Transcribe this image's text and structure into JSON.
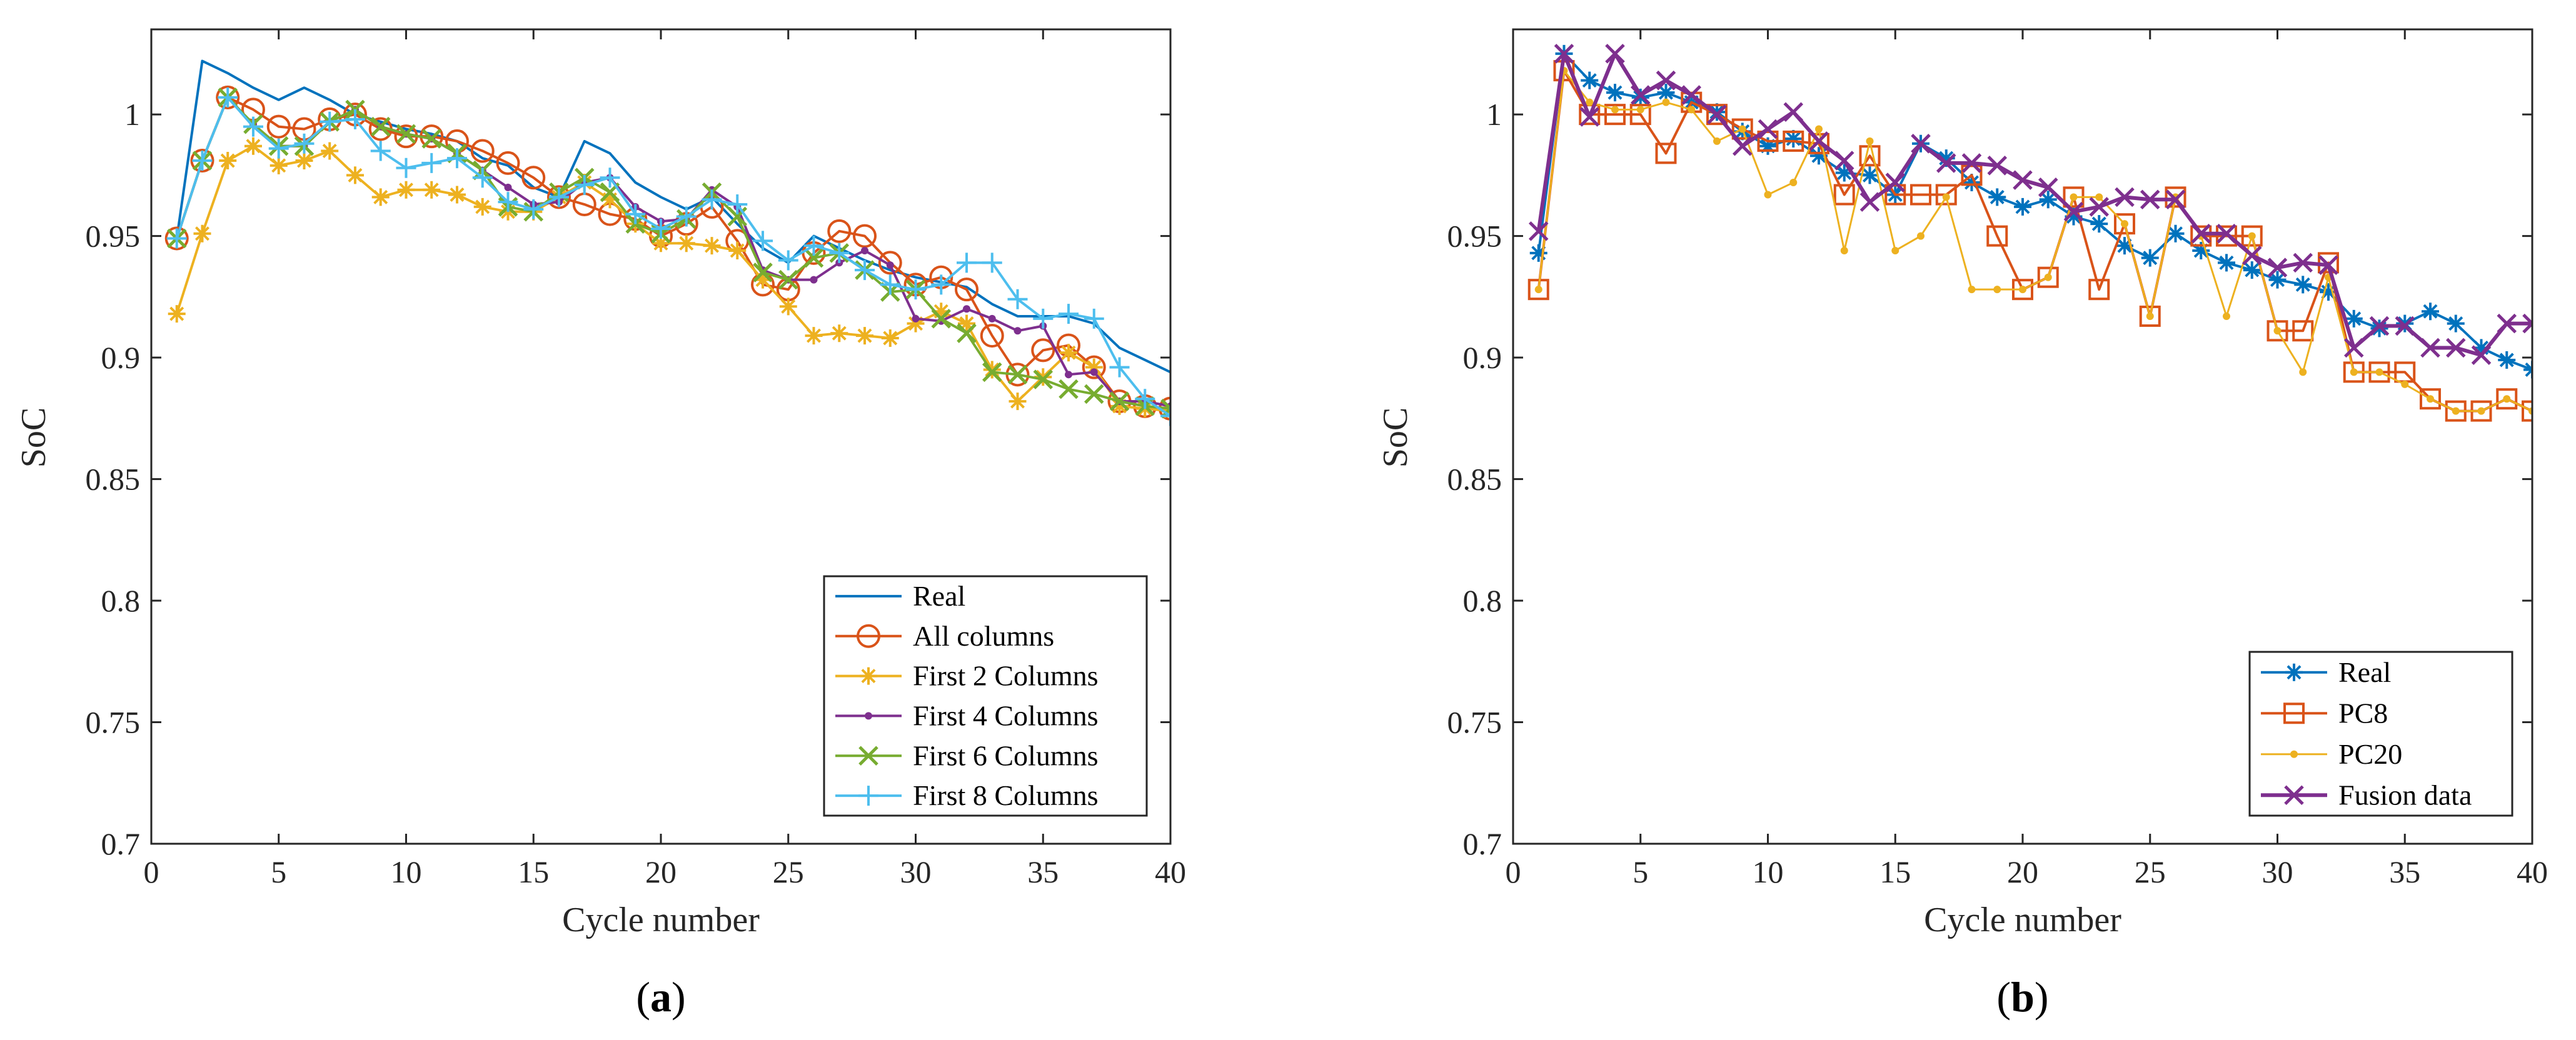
{
  "colors": {
    "blue": "#0072BD",
    "orange": "#D95319",
    "yellow": "#EDB120",
    "purple": "#7E2F8E",
    "green": "#77AC30",
    "cyan": "#4DBEEE"
  },
  "chart_data": [
    {
      "type": "line",
      "caption": "(a)",
      "caption_letter": "a",
      "xlabel": "Cycle number",
      "ylabel": "SoC",
      "xlim": [
        0,
        40
      ],
      "ylim": [
        0.7,
        1.035
      ],
      "xticks": [
        0,
        5,
        10,
        15,
        20,
        25,
        30,
        35,
        40
      ],
      "xtick_labels": [
        "0",
        "5",
        "10",
        "15",
        "20",
        "25",
        "30",
        "35",
        "40"
      ],
      "yticks": [
        0.7,
        0.75,
        0.8,
        0.85,
        0.9,
        0.95,
        1
      ],
      "ytick_labels": [
        "0.7",
        "0.75",
        "0.8",
        "0.85",
        "0.9",
        "0.95",
        "1"
      ],
      "legend_position": "bottom-right",
      "series": [
        {
          "name": "Real",
          "color": "blue",
          "marker": "none",
          "width": 4,
          "values": [
            0.949,
            1.022,
            1.017,
            1.011,
            1.006,
            1.011,
            1.006,
            1.0,
            0.997,
            0.994,
            0.992,
            0.989,
            0.982,
            0.979,
            0.97,
            0.966,
            0.989,
            0.984,
            0.972,
            0.966,
            0.961,
            0.966,
            0.955,
            0.945,
            0.939,
            0.95,
            0.945,
            0.94,
            0.936,
            0.933,
            0.931,
            0.929,
            0.922,
            0.917,
            0.917,
            0.917,
            0.914,
            0.904,
            0.899,
            0.894
          ]
        },
        {
          "name": "All columns",
          "color": "orange",
          "marker": "circle",
          "width": 4,
          "values": [
            0.949,
            0.981,
            1.007,
            1.002,
            0.995,
            0.994,
            0.998,
            1.0,
            0.994,
            0.991,
            0.991,
            0.989,
            0.985,
            0.98,
            0.974,
            0.966,
            0.963,
            0.959,
            0.957,
            0.95,
            0.955,
            0.962,
            0.948,
            0.93,
            0.928,
            0.943,
            0.952,
            0.95,
            0.939,
            0.93,
            0.933,
            0.928,
            0.909,
            0.893,
            0.903,
            0.905,
            0.896,
            0.882,
            0.88,
            0.879
          ]
        },
        {
          "name": "First 2 Columns",
          "color": "yellow",
          "marker": "star",
          "width": 4,
          "values": [
            0.918,
            0.951,
            0.981,
            0.987,
            0.979,
            0.981,
            0.985,
            0.975,
            0.966,
            0.969,
            0.969,
            0.967,
            0.962,
            0.96,
            0.96,
            0.966,
            0.972,
            0.965,
            0.955,
            0.947,
            0.947,
            0.946,
            0.944,
            0.932,
            0.921,
            0.909,
            0.91,
            0.909,
            0.908,
            0.914,
            0.919,
            0.914,
            0.895,
            0.882,
            0.892,
            0.902,
            0.896,
            0.88,
            0.879,
            0.878
          ]
        },
        {
          "name": "First 4 Columns",
          "color": "purple",
          "marker": "dot",
          "width": 4,
          "values": [
            0.949,
            0.981,
            1.007,
            0.996,
            0.987,
            0.987,
            0.997,
            1.002,
            0.995,
            0.992,
            0.99,
            0.984,
            0.977,
            0.97,
            0.963,
            0.964,
            0.972,
            0.974,
            0.962,
            0.956,
            0.957,
            0.969,
            0.962,
            0.936,
            0.932,
            0.932,
            0.939,
            0.944,
            0.938,
            0.916,
            0.915,
            0.92,
            0.916,
            0.911,
            0.913,
            0.893,
            0.894,
            0.882,
            0.882,
            0.88
          ]
        },
        {
          "name": "First 6 Columns",
          "color": "green",
          "marker": "x",
          "width": 4,
          "values": [
            0.949,
            0.981,
            1.007,
            0.996,
            0.987,
            0.987,
            0.997,
            1.002,
            0.995,
            0.992,
            0.99,
            0.984,
            0.977,
            0.962,
            0.96,
            0.968,
            0.974,
            0.968,
            0.955,
            0.951,
            0.957,
            0.968,
            0.958,
            0.935,
            0.932,
            0.941,
            0.943,
            0.936,
            0.927,
            0.928,
            0.916,
            0.91,
            0.894,
            0.893,
            0.891,
            0.887,
            0.885,
            0.882,
            0.88,
            0.879
          ]
        },
        {
          "name": "First 8 Columns",
          "color": "cyan",
          "marker": "plus",
          "width": 4,
          "values": [
            0.949,
            0.981,
            1.007,
            0.995,
            0.986,
            0.988,
            0.997,
            0.998,
            0.985,
            0.978,
            0.98,
            0.982,
            0.974,
            0.964,
            0.961,
            0.966,
            0.971,
            0.974,
            0.959,
            0.953,
            0.958,
            0.965,
            0.963,
            0.948,
            0.94,
            0.946,
            0.943,
            0.936,
            0.93,
            0.928,
            0.93,
            0.939,
            0.939,
            0.924,
            0.916,
            0.918,
            0.916,
            0.896,
            0.883,
            0.876
          ]
        }
      ]
    },
    {
      "type": "line",
      "caption": "(b)",
      "caption_letter": "b",
      "xlabel": "Cycle number",
      "ylabel": "SoC",
      "xlim": [
        0,
        40
      ],
      "ylim": [
        0.7,
        1.035
      ],
      "xticks": [
        0,
        5,
        10,
        15,
        20,
        25,
        30,
        35,
        40
      ],
      "xtick_labels": [
        "0",
        "5",
        "10",
        "15",
        "20",
        "25",
        "30",
        "35",
        "40"
      ],
      "yticks": [
        0.7,
        0.75,
        0.8,
        0.85,
        0.9,
        0.95,
        1
      ],
      "ytick_labels": [
        "0.7",
        "0.75",
        "0.8",
        "0.85",
        "0.9",
        "0.95",
        "1"
      ],
      "legend_position": "bottom-right",
      "series": [
        {
          "name": "Real",
          "color": "blue",
          "marker": "star",
          "width": 4,
          "values": [
            0.943,
            1.025,
            1.014,
            1.009,
            1.007,
            1.009,
            1.005,
            1.001,
            0.993,
            0.987,
            0.99,
            0.983,
            0.976,
            0.975,
            0.967,
            0.988,
            0.982,
            0.972,
            0.966,
            0.962,
            0.965,
            0.958,
            0.955,
            0.946,
            0.941,
            0.951,
            0.944,
            0.939,
            0.936,
            0.932,
            0.93,
            0.927,
            0.916,
            0.912,
            0.914,
            0.919,
            0.914,
            0.904,
            0.899,
            0.895
          ]
        },
        {
          "name": "PC8",
          "color": "orange",
          "marker": "square",
          "width": 4,
          "values": [
            0.928,
            1.018,
            1.0,
            1.0,
            1.0,
            0.984,
            1.005,
            1.0,
            0.994,
            0.989,
            0.989,
            0.988,
            0.967,
            0.983,
            0.967,
            0.967,
            0.967,
            0.975,
            0.95,
            0.928,
            0.933,
            0.966,
            0.928,
            0.955,
            0.917,
            0.966,
            0.95,
            0.95,
            0.95,
            0.911,
            0.911,
            0.939,
            0.894,
            0.894,
            0.894,
            0.883,
            0.878,
            0.878,
            0.883,
            0.878
          ]
        },
        {
          "name": "PC20",
          "color": "yellow",
          "marker": "dot",
          "width": 3,
          "values": [
            0.928,
            1.018,
            1.005,
            1.002,
            1.002,
            1.005,
            1.002,
            0.989,
            0.994,
            0.967,
            0.972,
            0.994,
            0.944,
            0.989,
            0.944,
            0.95,
            0.966,
            0.928,
            0.928,
            0.928,
            0.933,
            0.966,
            0.966,
            0.955,
            0.917,
            0.966,
            0.95,
            0.917,
            0.95,
            0.911,
            0.894,
            0.933,
            0.894,
            0.894,
            0.889,
            0.883,
            0.878,
            0.878,
            0.883,
            0.878
          ]
        },
        {
          "name": "Fusion data",
          "color": "purple",
          "marker": "x",
          "width": 6,
          "values": [
            0.952,
            1.025,
            0.999,
            1.025,
            1.008,
            1.014,
            1.008,
            1.0,
            0.987,
            0.994,
            1.001,
            0.989,
            0.981,
            0.964,
            0.972,
            0.988,
            0.98,
            0.98,
            0.979,
            0.973,
            0.97,
            0.96,
            0.962,
            0.966,
            0.965,
            0.965,
            0.951,
            0.951,
            0.942,
            0.937,
            0.939,
            0.938,
            0.904,
            0.913,
            0.913,
            0.904,
            0.904,
            0.901,
            0.914,
            0.914
          ]
        }
      ]
    }
  ]
}
